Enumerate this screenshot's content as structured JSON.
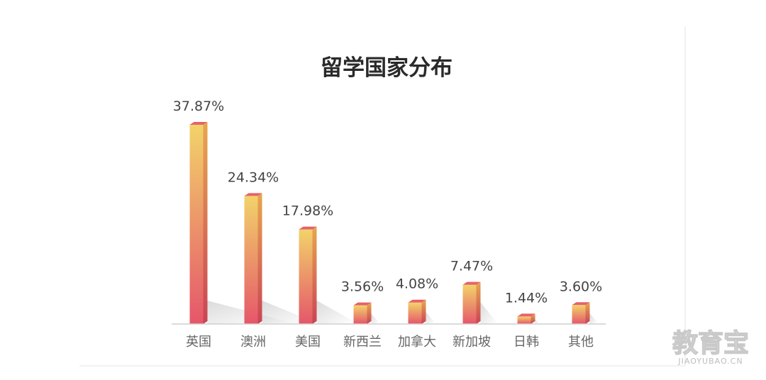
{
  "chart_data": {
    "type": "bar",
    "title": "留学国家分布",
    "categories": [
      "英国",
      "澳洲",
      "美国",
      "新西兰",
      "加拿大",
      "新加坡",
      "日韩",
      "其他"
    ],
    "values": [
      37.87,
      24.34,
      17.98,
      3.56,
      4.08,
      7.47,
      1.44,
      3.6
    ],
    "value_labels": [
      "37.87%",
      "24.34%",
      "17.98%",
      "3.56%",
      "4.08%",
      "7.47%",
      "1.44%",
      "3.60%"
    ],
    "unit": "%",
    "ylim": [
      0,
      37.87
    ],
    "grid": false,
    "legend": "none",
    "colors": {
      "bar_top": "#f2d36a",
      "bar_bottom": "#e5566a",
      "bar_side": "#d9535f",
      "title": "#2a2a2a",
      "axis": "#cfcfcf"
    }
  },
  "watermark": {
    "brand": "教育宝",
    "domain": "JIAOYUBAO.CN"
  }
}
